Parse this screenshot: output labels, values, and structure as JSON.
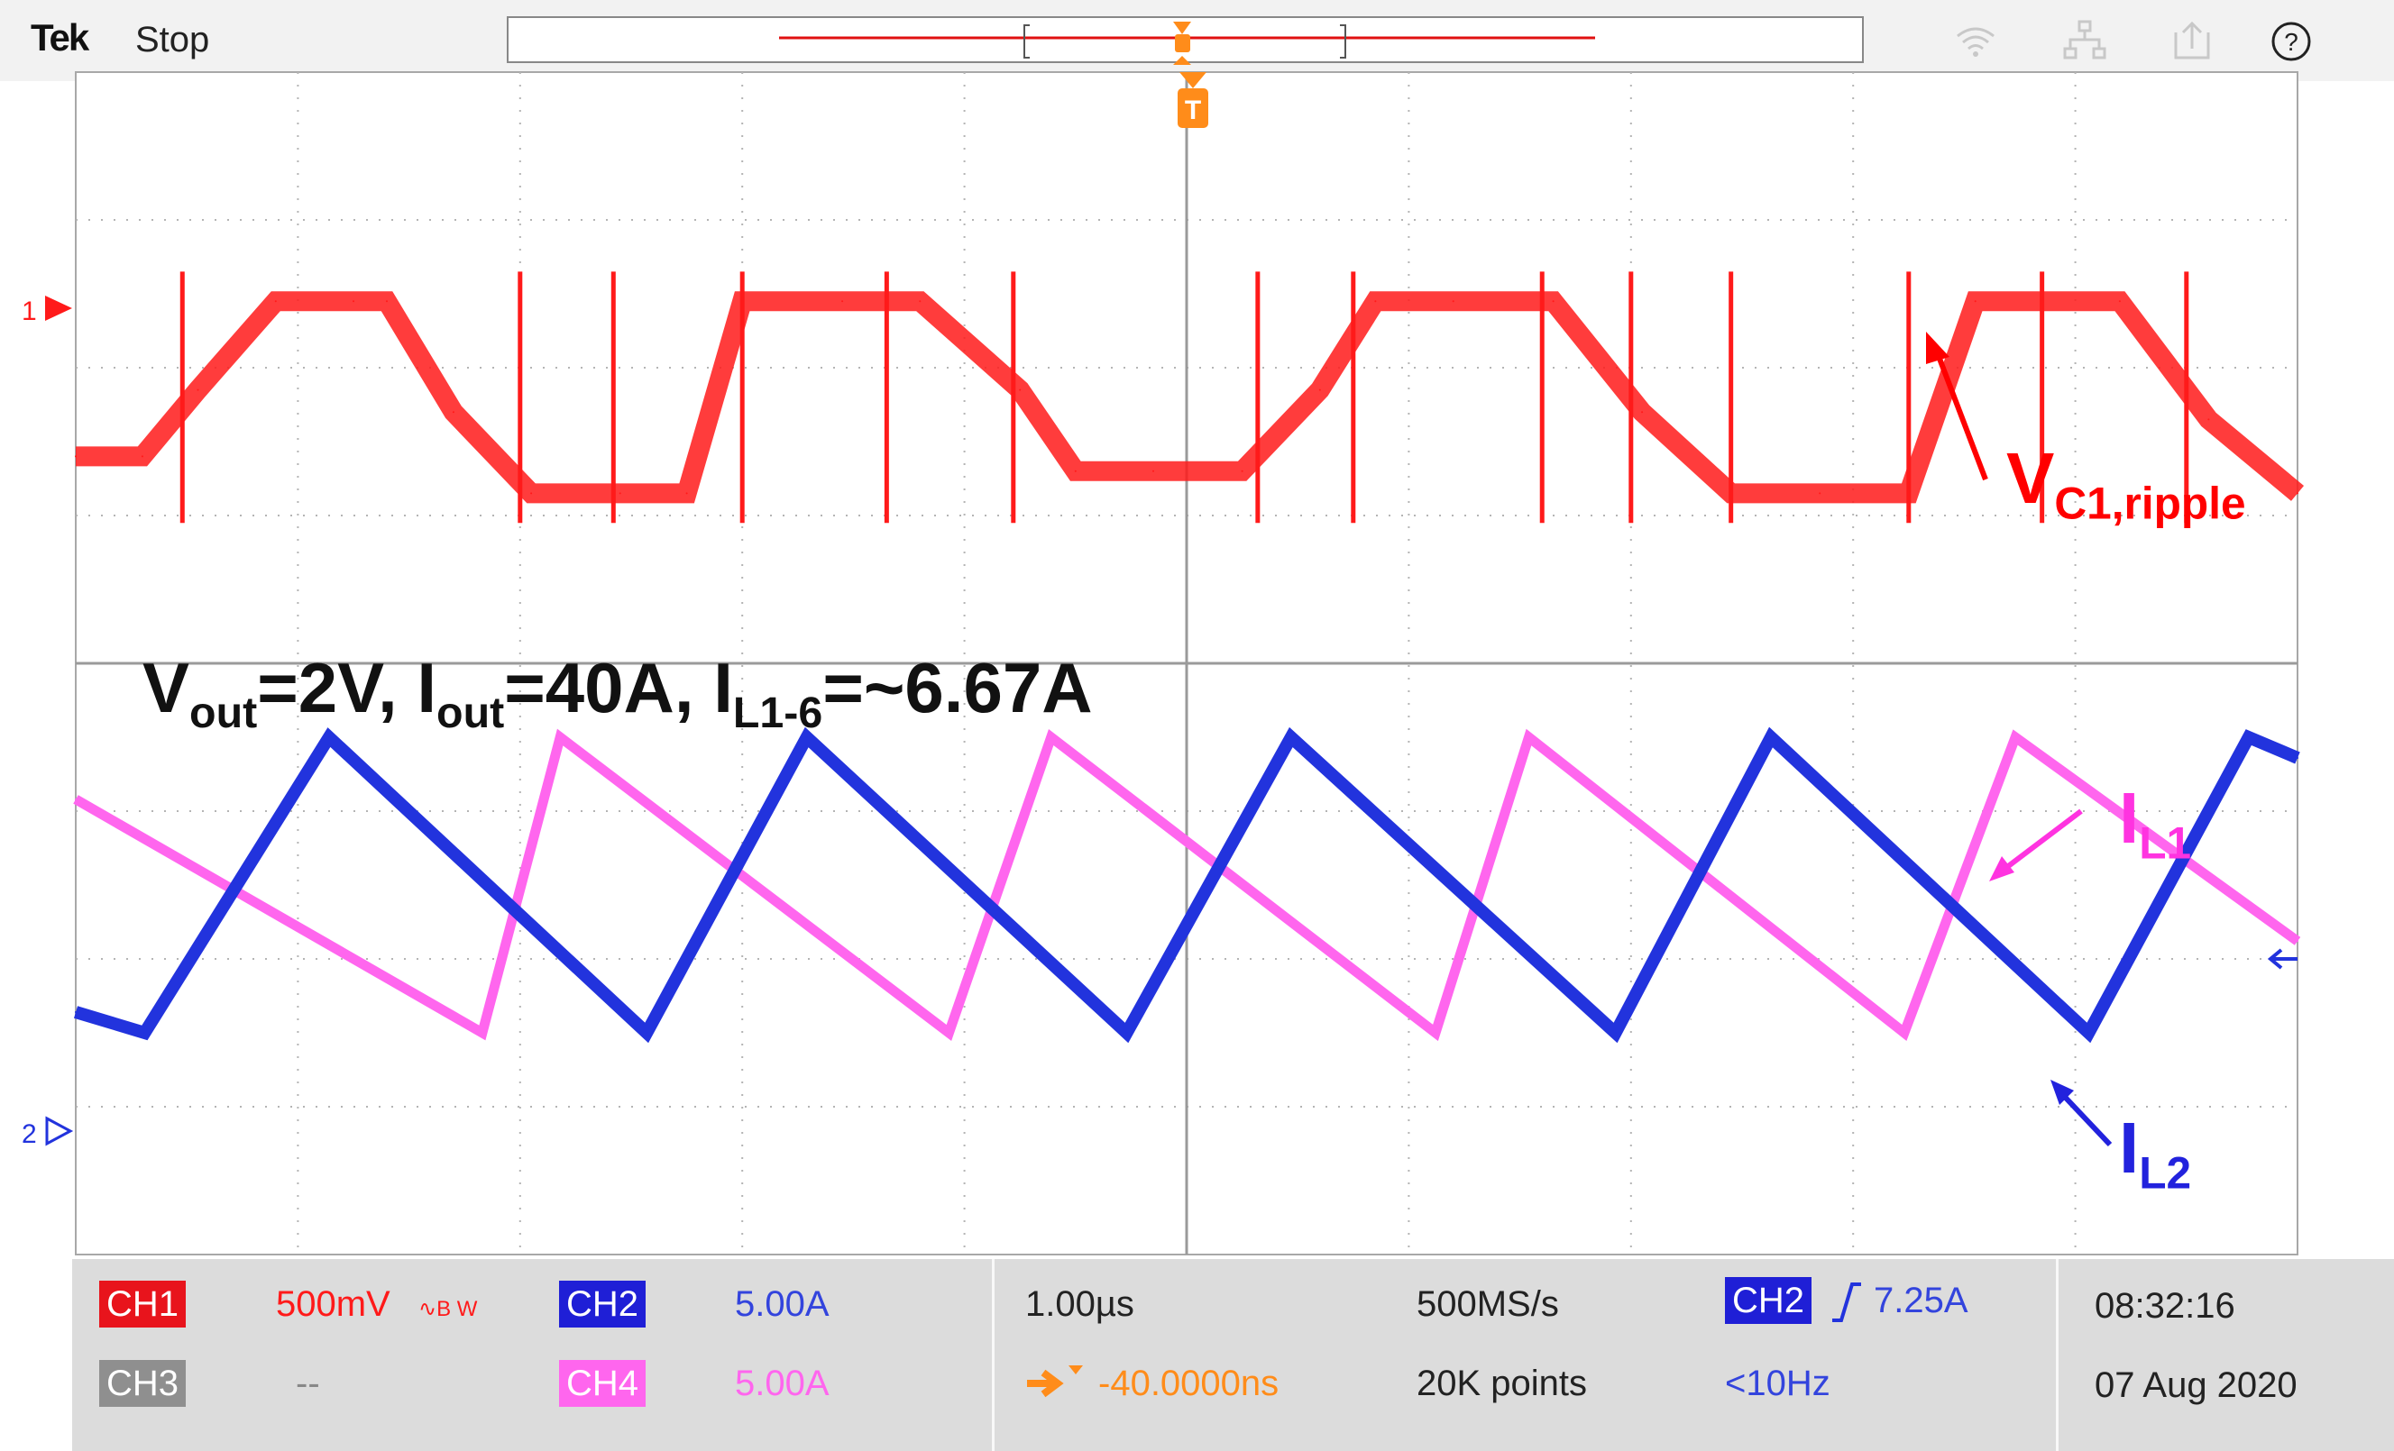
{
  "brand": "Tek",
  "acquisition_state": "Stop",
  "channel_markers": {
    "ch1": "1",
    "ch2": "2"
  },
  "annotations": {
    "conditions": {
      "v": "V",
      "v_sub": "out",
      "eq1": "=2V, I",
      "i_sub": "out",
      "eq2": "=40A, I",
      "il_sub": "L1-6",
      "eq3": "=~6.67A"
    },
    "vc1": {
      "main": "V",
      "sub": "C1,ripple"
    },
    "il1": {
      "main": "I",
      "sub": "L1"
    },
    "il2": {
      "main": "I",
      "sub": "L2"
    }
  },
  "status": {
    "ch1_label": "CH1",
    "ch1_scale": "500mV",
    "ch1_bw": "∿B W",
    "ch2_label": "CH2",
    "ch2_scale": "5.00A",
    "ch3_label": "CH3",
    "ch3_scale": "--",
    "ch4_label": "CH4",
    "ch4_scale": "5.00A",
    "timebase": "1.00µs",
    "position": "-40.0000ns",
    "sample_rate": "500MS/s",
    "record_length": "20K points",
    "trigger_source": "CH2",
    "trigger_level": "7.25A",
    "trigger_freq": "<10Hz",
    "time": "08:32:16",
    "date": "07 Aug 2020"
  },
  "colors": {
    "ch1": "#ff1a1a",
    "ch2": "#2233dd",
    "ch4": "#ff66ee",
    "trigger": "#ff8c1a",
    "ch1_badge": "#e8141c",
    "ch2_badge": "#1f1fd6",
    "ch3_badge": "#8f8f8f",
    "ch4_badge": "#ff66ee"
  },
  "chart_data": {
    "type": "line",
    "title": "",
    "xlabel": "",
    "ylabel": "",
    "x_unit": "µs",
    "x_per_division": 1.0,
    "x_divisions": 10,
    "x_range": [
      -5.0,
      5.0
    ],
    "grid": true,
    "series": [
      {
        "name": "CH1",
        "unit": "divisions",
        "x": [
          -5.0,
          -4.7,
          -4.45,
          -4.1,
          -3.75,
          -3.6,
          -3.3,
          -2.95,
          -2.55,
          -2.25,
          -2.0,
          -1.55,
          -1.2,
          -0.75,
          -0.5,
          -0.15,
          0.25,
          0.6,
          0.85,
          1.2,
          1.65,
          2.05,
          2.45,
          2.85,
          3.25,
          3.55,
          3.85,
          4.2,
          4.6,
          5.0
        ],
        "values": [
          -0.4,
          -0.4,
          0.05,
          0.65,
          0.65,
          0.65,
          -0.1,
          -0.65,
          -0.65,
          -0.65,
          0.65,
          0.65,
          0.65,
          0.05,
          -0.5,
          -0.5,
          -0.5,
          0.05,
          0.65,
          0.65,
          0.65,
          -0.1,
          -0.65,
          -0.65,
          -0.65,
          0.65,
          0.65,
          0.65,
          -0.15,
          -0.65
        ]
      },
      {
        "name": "CH2",
        "unit": "A",
        "x": [
          -5.0,
          -4.69,
          -3.86,
          -2.43,
          -1.71,
          -0.27,
          0.47,
          1.93,
          2.63,
          4.06,
          4.78,
          5.0
        ],
        "values": [
          3.2,
          2.5,
          12.5,
          2.5,
          12.5,
          2.5,
          12.5,
          2.5,
          12.5,
          2.5,
          12.5,
          11.8
        ]
      },
      {
        "name": "CH4",
        "unit": "A",
        "x": [
          -5.0,
          -3.17,
          -2.82,
          -1.07,
          -0.61,
          1.12,
          1.54,
          3.23,
          3.73,
          5.0
        ],
        "values": [
          10.4,
          2.5,
          12.5,
          2.5,
          12.5,
          2.5,
          12.5,
          2.5,
          12.5,
          5.6
        ]
      }
    ]
  }
}
